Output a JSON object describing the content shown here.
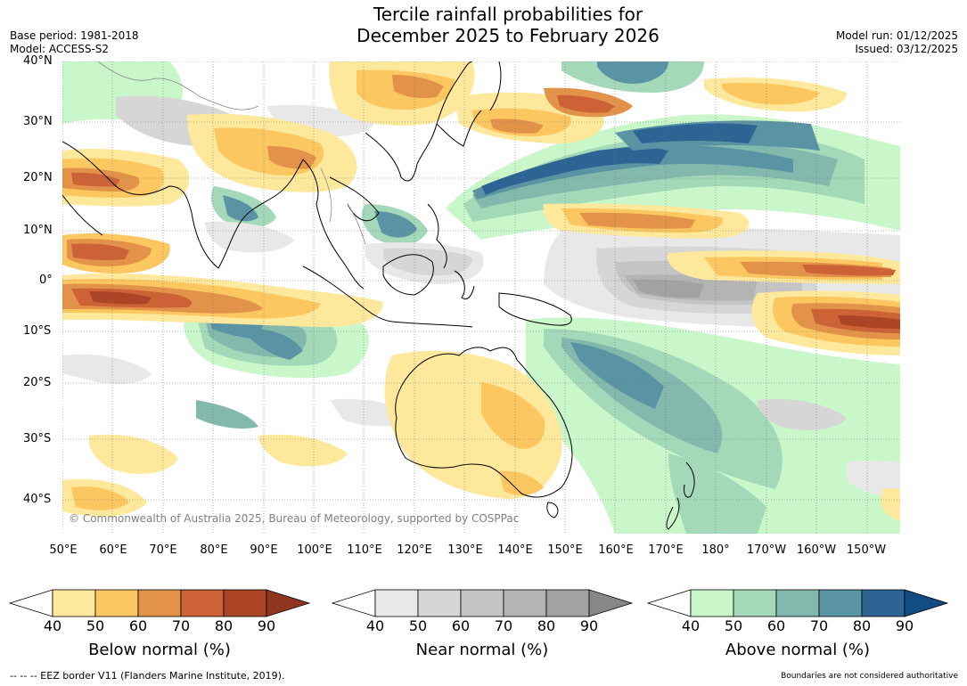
{
  "title": {
    "line1": "Tercile rainfall probabilities for",
    "line2": "December 2025 to February 2026"
  },
  "meta": {
    "base_period": "Base period: 1981-2018",
    "model": "Model: ACCESS-S2",
    "model_run": "Model run: 01/12/2025",
    "issued": "Issued: 03/12/2025"
  },
  "map": {
    "lat_labels": [
      "40°N",
      "30°N",
      "20°N",
      "10°N",
      "0°",
      "10°S",
      "20°S",
      "30°S",
      "40°S"
    ],
    "lon_labels": [
      "50°E",
      "60°E",
      "70°E",
      "80°E",
      "90°E",
      "100°E",
      "110°E",
      "120°E",
      "130°E",
      "140°E",
      "150°E",
      "160°E",
      "170°E",
      "180°",
      "170°W",
      "160°W",
      "150°W"
    ],
    "copyright": "© Commonwealth of Australia 2025, Bureau of Meteorology, supported by COSPPac"
  },
  "colorbars": [
    {
      "name": "below",
      "label": "Below normal (%)",
      "ticks": [
        "40",
        "50",
        "60",
        "70",
        "80",
        "90"
      ],
      "low_color": "#ffffff",
      "colors": [
        "#fde89b",
        "#fcc760",
        "#e3924a",
        "#cc6235",
        "#ac4526"
      ],
      "high_color": "#903520"
    },
    {
      "name": "near",
      "label": "Near normal (%)",
      "ticks": [
        "40",
        "50",
        "60",
        "70",
        "80",
        "90"
      ],
      "low_color": "#ffffff",
      "colors": [
        "#e8e8e8",
        "#d6d6d6",
        "#c4c4c4",
        "#b4b4b4",
        "#a2a2a2"
      ],
      "high_color": "#878787"
    },
    {
      "name": "above",
      "label": "Above normal (%)",
      "ticks": [
        "40",
        "50",
        "60",
        "70",
        "80",
        "90"
      ],
      "low_color": "#ffffff",
      "colors": [
        "#c9f7c9",
        "#a3d8b8",
        "#83b8ad",
        "#5a93a3",
        "#2d6494"
      ],
      "high_color": "#134b85"
    }
  ],
  "footer": {
    "eez": "--  --  -- EEZ border V11 (Flanders Marine Institute, 2019).",
    "disclaimer": "Boundaries are not considered authoritative"
  }
}
